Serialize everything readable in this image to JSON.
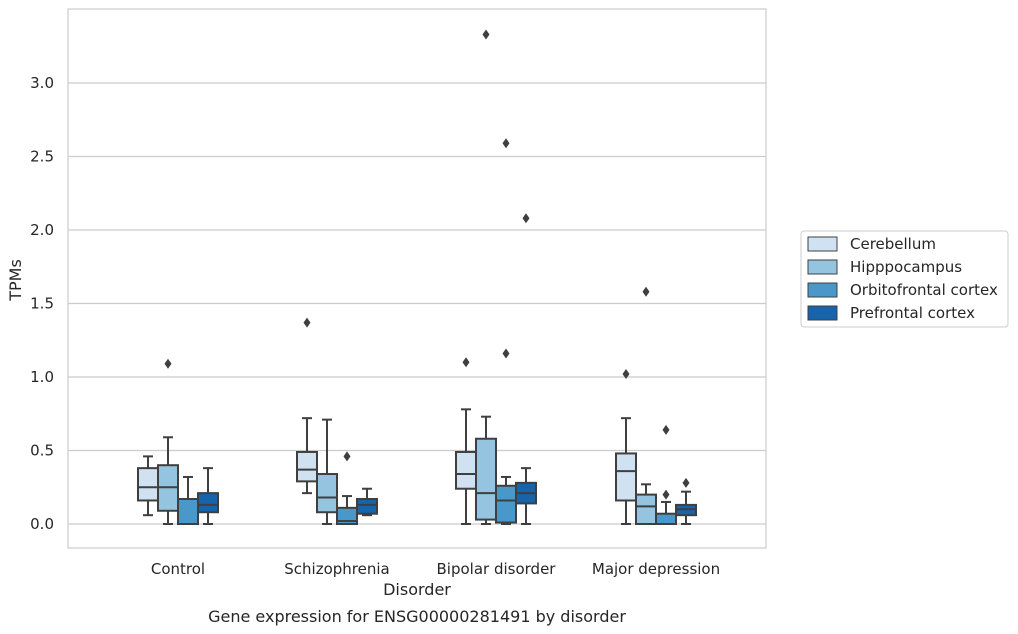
{
  "caption": "Gene expression for ENSG00000281491 by disorder",
  "chart_data": {
    "type": "box",
    "xlabel": "Disorder",
    "ylabel": "TPMs",
    "ylim": [
      -0.16,
      3.52
    ],
    "yticks": [
      "0.0",
      "0.5",
      "1.0",
      "1.5",
      "2.0",
      "2.5",
      "3.0"
    ],
    "yticks_values": [
      0,
      0.5,
      1.0,
      1.5,
      2.0,
      2.5,
      3.0
    ],
    "grid": "horizontal",
    "legend_placement": "center-right",
    "categories": [
      "Control",
      "Schizophrenia",
      "Bipolar disorder",
      "Major depression"
    ],
    "series": [
      {
        "name": "Cerebellum",
        "color": "#d0e1f2",
        "boxes": [
          {
            "whislo": 0.06,
            "q1": 0.16,
            "med": 0.25,
            "q3": 0.38,
            "whishi": 0.46,
            "fliers": []
          },
          {
            "whislo": 0.21,
            "q1": 0.29,
            "med": 0.37,
            "q3": 0.49,
            "whishi": 0.72,
            "fliers": [
              1.37
            ]
          },
          {
            "whislo": 0.0,
            "q1": 0.24,
            "med": 0.34,
            "q3": 0.49,
            "whishi": 0.78,
            "fliers": [
              1.1
            ]
          },
          {
            "whislo": 0.0,
            "q1": 0.16,
            "med": 0.36,
            "q3": 0.48,
            "whishi": 0.72,
            "fliers": [
              1.02
            ]
          }
        ]
      },
      {
        "name": "Hipppocampus",
        "color": "#94c4df",
        "boxes": [
          {
            "whislo": 0.0,
            "q1": 0.09,
            "med": 0.25,
            "q3": 0.4,
            "whishi": 0.59,
            "fliers": [
              1.09
            ]
          },
          {
            "whislo": 0.0,
            "q1": 0.08,
            "med": 0.18,
            "q3": 0.34,
            "whishi": 0.71,
            "fliers": []
          },
          {
            "whislo": 0.0,
            "q1": 0.03,
            "med": 0.21,
            "q3": 0.58,
            "whishi": 0.73,
            "fliers": [
              3.33
            ]
          },
          {
            "whislo": 0.0,
            "q1": 0.0,
            "med": 0.12,
            "q3": 0.2,
            "whishi": 0.27,
            "fliers": [
              1.58
            ]
          }
        ]
      },
      {
        "name": "Orbitofrontal cortex",
        "color": "#4a98c9",
        "boxes": [
          {
            "whislo": 0.0,
            "q1": 0.0,
            "med": 0.0,
            "q3": 0.17,
            "whishi": 0.32,
            "fliers": []
          },
          {
            "whislo": 0.0,
            "q1": 0.0,
            "med": 0.02,
            "q3": 0.11,
            "whishi": 0.19,
            "fliers": [
              0.46
            ]
          },
          {
            "whislo": 0.0,
            "q1": 0.01,
            "med": 0.16,
            "q3": 0.26,
            "whishi": 0.32,
            "fliers": [
              1.16,
              2.59
            ]
          },
          {
            "whislo": 0.0,
            "q1": 0.0,
            "med": 0.0,
            "q3": 0.07,
            "whishi": 0.15,
            "fliers": [
              0.2,
              0.64
            ]
          }
        ]
      },
      {
        "name": "Prefrontal cortex",
        "color": "#1764ab",
        "boxes": [
          {
            "whislo": 0.0,
            "q1": 0.08,
            "med": 0.13,
            "q3": 0.21,
            "whishi": 0.38,
            "fliers": []
          },
          {
            "whislo": 0.06,
            "q1": 0.07,
            "med": 0.13,
            "q3": 0.17,
            "whishi": 0.24,
            "fliers": []
          },
          {
            "whislo": 0.0,
            "q1": 0.14,
            "med": 0.21,
            "q3": 0.28,
            "whishi": 0.38,
            "fliers": [
              2.08
            ]
          },
          {
            "whislo": 0.0,
            "q1": 0.06,
            "med": 0.1,
            "q3": 0.13,
            "whishi": 0.22,
            "fliers": [
              0.28
            ]
          }
        ]
      }
    ]
  }
}
